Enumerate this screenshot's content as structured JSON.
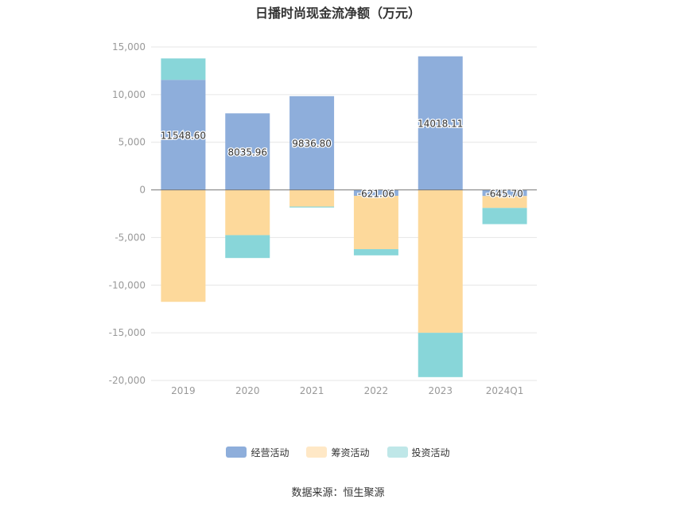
{
  "chart_data": {
    "type": "bar",
    "stacked": true,
    "title": "日播时尚现金流净额（万元）",
    "categories": [
      "2019",
      "2020",
      "2021",
      "2022",
      "2023",
      "2024Q1"
    ],
    "ylim": [
      -20000,
      15000
    ],
    "yticks": [
      15000,
      10000,
      5000,
      0,
      -5000,
      -10000,
      -15000,
      -20000
    ],
    "ytick_labels": [
      "15,000",
      "10,000",
      "5,000",
      "0",
      "-5,000",
      "-10,000",
      "-15,000",
      "-20,000"
    ],
    "grid": true,
    "legend_position": "bottom",
    "series": [
      {
        "name": "经营活动",
        "color": "#8eaedb",
        "values": [
          11548.6,
          8035.96,
          9836.8,
          -621.06,
          14018.11,
          -645.7
        ],
        "labels": [
          "11548.60",
          "8035.96",
          "9836.80",
          "-621.06",
          "14018.11",
          "-645.70"
        ]
      },
      {
        "name": "筹资活动",
        "color": "#fdd99b",
        "values": [
          -11750,
          -4750,
          -1750,
          -5600,
          -15000,
          -1250
        ]
      },
      {
        "name": "投资活动",
        "color": "#88d6d9",
        "values": [
          2250,
          -2400,
          -100,
          -650,
          -4650,
          -1700
        ]
      }
    ]
  },
  "legend": {
    "operating": "经营活动",
    "financing": "筹资活动",
    "investing": "投资活动",
    "operating_color": "#8eaedb",
    "financing_color": "#ffe8c6",
    "investing_color": "#bfe7e8"
  },
  "source": "数据来源：恒生聚源"
}
